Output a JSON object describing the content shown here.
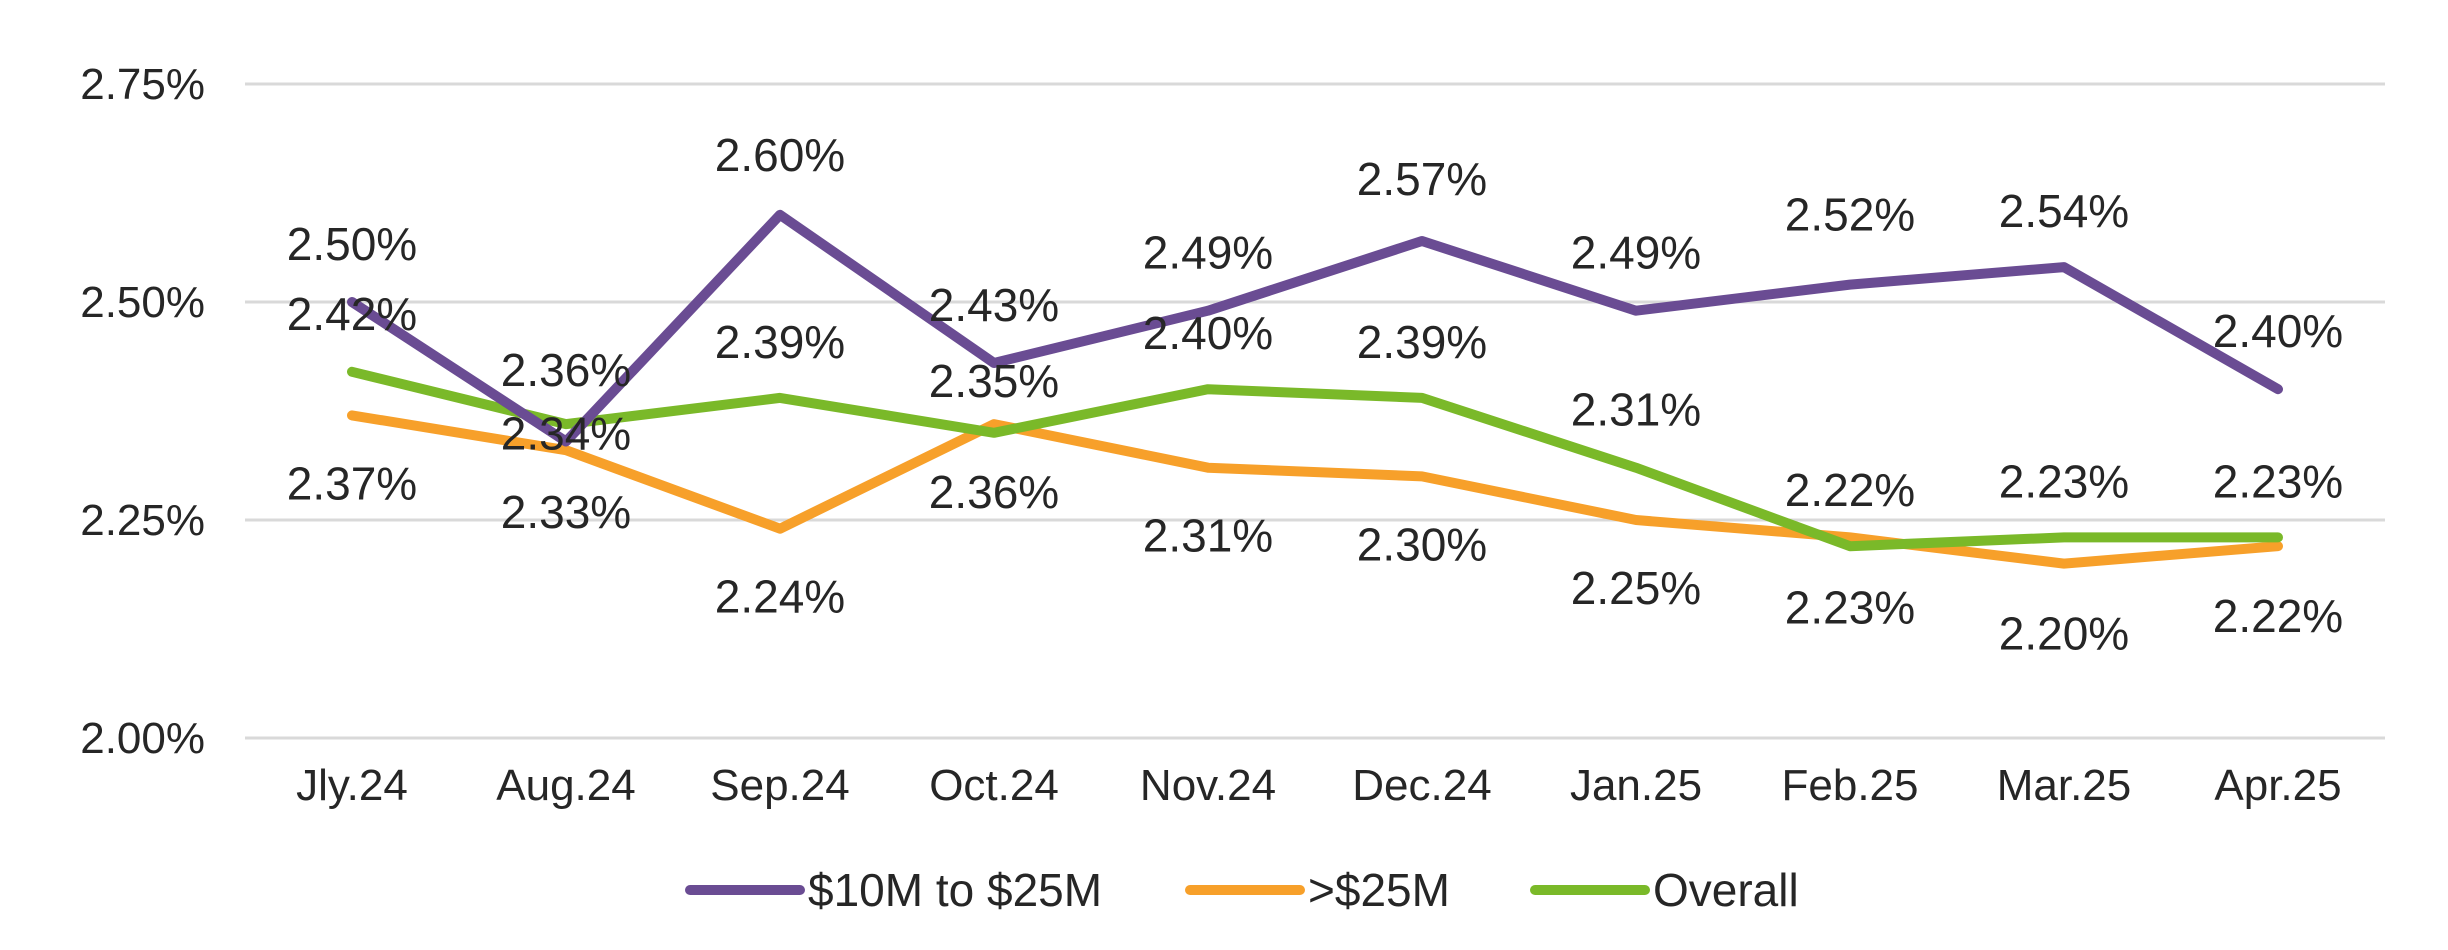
{
  "chart_data": {
    "type": "line",
    "title": "",
    "xlabel": "",
    "ylabel": "",
    "categories": [
      "Jly.24",
      "Aug.24",
      "Sep.24",
      "Oct.24",
      "Nov.24",
      "Dec.24",
      "Jan.25",
      "Feb.25",
      "Mar.25",
      "Apr.25"
    ],
    "ylim": [
      2.0,
      2.75
    ],
    "yticks": [
      2.0,
      2.25,
      2.5,
      2.75
    ],
    "ytick_labels": [
      "2.00%",
      "2.25%",
      "2.50%",
      "2.75%"
    ],
    "grid": true,
    "legend_position": "bottom",
    "series": [
      {
        "name": "$10M to $25M",
        "color": "#6a4c93",
        "values": [
          2.5,
          2.34,
          2.6,
          2.43,
          2.49,
          2.57,
          2.49,
          2.52,
          2.54,
          2.4
        ],
        "labels": [
          "2.50%",
          "2.34%",
          "2.60%",
          "2.43%",
          "2.49%",
          "2.57%",
          "2.49%",
          "2.52%",
          "2.54%",
          "2.40%"
        ]
      },
      {
        "name": ">$25M",
        "color": "#f7a02a",
        "values": [
          2.37,
          2.33,
          2.24,
          2.36,
          2.31,
          2.3,
          2.25,
          2.23,
          2.2,
          2.22
        ],
        "labels": [
          "2.37%",
          "2.33%",
          "2.24%",
          "2.36%",
          "2.31%",
          "2.30%",
          "2.25%",
          "2.23%",
          "2.20%",
          "2.22%"
        ]
      },
      {
        "name": "Overall",
        "color": "#7ab929",
        "values": [
          2.42,
          2.36,
          2.39,
          2.35,
          2.4,
          2.39,
          2.31,
          2.22,
          2.23,
          2.23
        ],
        "labels": [
          "2.42%",
          "2.36%",
          "2.39%",
          "2.35%",
          "2.40%",
          "2.39%",
          "2.31%",
          "2.22%",
          "2.23%",
          "2.23%"
        ]
      }
    ]
  }
}
